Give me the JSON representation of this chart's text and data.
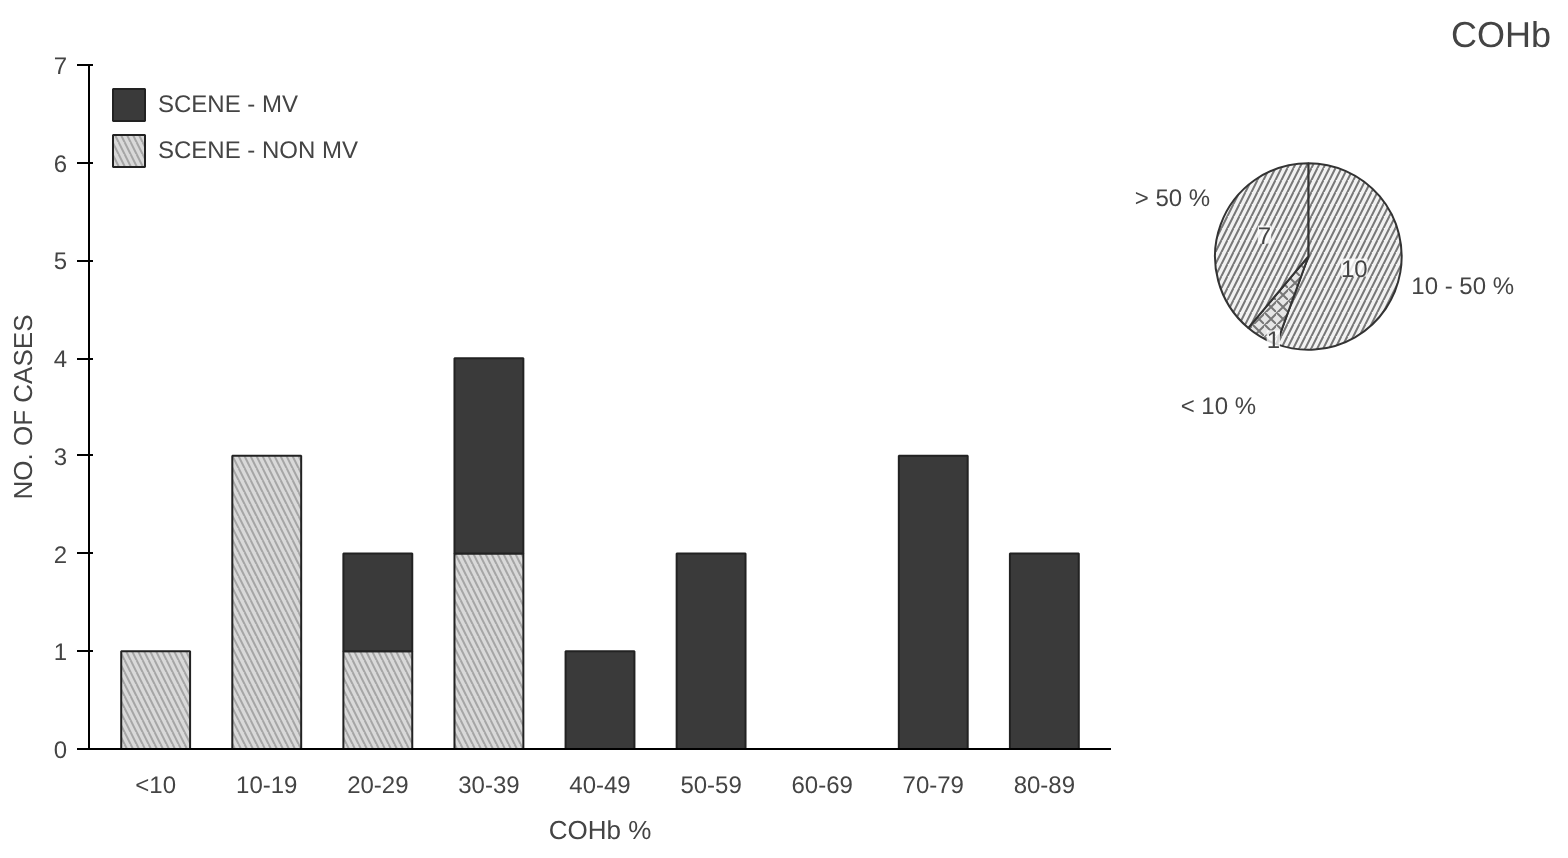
{
  "chart_data": [
    {
      "type": "bar",
      "xlabel": "COHb %",
      "ylabel": "NO. OF CASES",
      "categories": [
        "<10",
        "10-19",
        "20-29",
        "30-39",
        "40-49",
        "50-59",
        "60-69",
        "70-79",
        "80-89"
      ],
      "stacked": true,
      "series": [
        {
          "name": "SCENE - NON MV",
          "color": "#d9d9d9",
          "values": [
            1,
            3,
            1,
            2,
            0,
            0,
            0,
            0,
            0
          ]
        },
        {
          "name": "SCENE - MV",
          "color": "#3a3a3a",
          "values": [
            0,
            0,
            1,
            2,
            1,
            2,
            0,
            3,
            2
          ]
        }
      ],
      "ylim": [
        0,
        7
      ],
      "yticks": [
        0,
        1,
        2,
        3,
        4,
        5,
        6,
        7
      ],
      "grid": false,
      "legend": "top left"
    },
    {
      "type": "pie",
      "title": "COHb",
      "categories": [
        "10 - 50 %",
        "< 10 %",
        "> 50 %"
      ],
      "values": [
        10,
        1,
        7
      ],
      "colors": [
        "#f2f2f2",
        "#e6e6e6",
        "#f2f2f2"
      ],
      "data_labels": true
    }
  ]
}
